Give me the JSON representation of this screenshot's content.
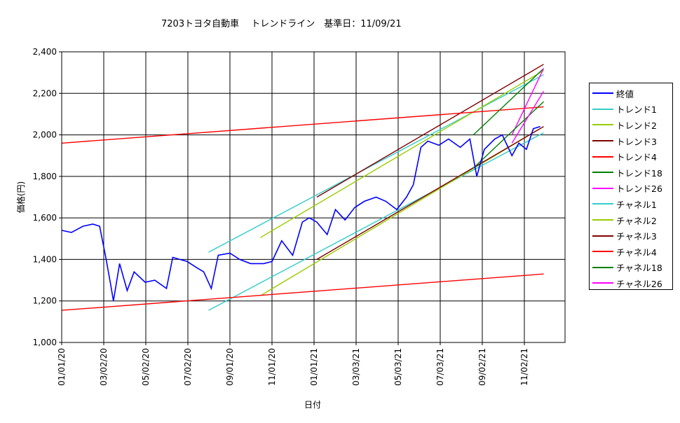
{
  "chart_data": {
    "type": "line",
    "title": "7203トヨタ自動車　 トレンドライン　基準日：11/09/21",
    "xlabel": "日付",
    "ylabel": "価格(円)",
    "ylim": [
      1000,
      2400
    ],
    "yticks": [
      1000,
      1200,
      1400,
      1600,
      1800,
      2000,
      2200,
      2400
    ],
    "ytick_labels": [
      "1,000",
      "1,200",
      "1,400",
      "1,600",
      "1,800",
      "2,000",
      "2,200",
      "2,400"
    ],
    "xlim": [
      "01/01/20",
      "12/31/21"
    ],
    "xticks": [
      "01/01/20",
      "03/02/20",
      "05/02/20",
      "07/02/20",
      "09/01/20",
      "11/01/20",
      "01/01/21",
      "03/03/21",
      "05/03/21",
      "07/03/21",
      "09/02/21",
      "11/02/21"
    ],
    "grid": true,
    "legend_position": "right",
    "series": [
      {
        "name": "終値",
        "color": "#0000ff",
        "x": [
          "01/01/20",
          "01/15/20",
          "02/01/20",
          "02/15/20",
          "02/25/20",
          "03/05/20",
          "03/12/20",
          "03/16/20",
          "03/25/20",
          "04/05/20",
          "04/15/20",
          "05/01/20",
          "05/15/20",
          "06/01/20",
          "06/10/20",
          "07/01/20",
          "07/15/20",
          "07/25/20",
          "08/05/20",
          "08/15/20",
          "09/01/20",
          "09/15/20",
          "10/01/20",
          "10/20/20",
          "11/01/20",
          "11/15/20",
          "12/01/20",
          "12/15/20",
          "12/25/20",
          "01/05/21",
          "01/20/21",
          "02/01/21",
          "02/15/21",
          "03/01/21",
          "03/15/21",
          "04/01/21",
          "04/15/21",
          "05/01/21",
          "05/15/21",
          "05/25/21",
          "06/05/21",
          "06/15/21",
          "07/01/21",
          "07/15/21",
          "08/01/21",
          "08/15/21",
          "08/25/21",
          "09/05/21",
          "09/20/21",
          "10/01/21",
          "10/15/21",
          "10/25/21",
          "11/05/21",
          "11/15/21",
          "11/25/21"
        ],
        "y": [
          1540,
          1530,
          1560,
          1570,
          1560,
          1410,
          1280,
          1200,
          1380,
          1250,
          1340,
          1290,
          1300,
          1260,
          1410,
          1390,
          1360,
          1340,
          1260,
          1420,
          1430,
          1400,
          1380,
          1380,
          1390,
          1490,
          1420,
          1580,
          1600,
          1580,
          1520,
          1640,
          1590,
          1650,
          1680,
          1700,
          1680,
          1640,
          1700,
          1760,
          1940,
          1970,
          1950,
          1980,
          1940,
          1980,
          1800,
          1930,
          1980,
          2000,
          1900,
          1960,
          1930,
          2030,
          2040
        ]
      },
      {
        "name": "トレンド1",
        "color": "#33cccc",
        "x": [
          "08/01/20",
          "11/30/21"
        ],
        "y": [
          1435,
          2290
        ]
      },
      {
        "name": "トレンド2",
        "color": "#99cc00",
        "x": [
          "10/15/20",
          "11/30/21"
        ],
        "y": [
          1505,
          2310
        ]
      },
      {
        "name": "トレンド3",
        "color": "#800000",
        "x": [
          "01/05/21",
          "11/30/21"
        ],
        "y": [
          1700,
          2340
        ]
      },
      {
        "name": "トレンド4",
        "color": "#ff0000",
        "x": [
          "01/01/20",
          "11/30/21"
        ],
        "y": [
          1960,
          2135
        ]
      },
      {
        "name": "トレンド18",
        "color": "#008000",
        "x": [
          "08/20/21",
          "11/30/21"
        ],
        "y": [
          2000,
          2320
        ]
      },
      {
        "name": "トレンド26",
        "color": "#ff00ff",
        "x": [
          "10/15/21",
          "11/30/21"
        ],
        "y": [
          2000,
          2320
        ]
      },
      {
        "name": "チャネル1",
        "color": "#33cccc",
        "x": [
          "08/01/20",
          "11/30/21"
        ],
        "y": [
          1155,
          2010
        ]
      },
      {
        "name": "チャネル2",
        "color": "#99cc00",
        "x": [
          "10/15/20",
          "11/30/21"
        ],
        "y": [
          1225,
          2040
        ]
      },
      {
        "name": "チャネル3",
        "color": "#800000",
        "x": [
          "01/05/21",
          "11/30/21"
        ],
        "y": [
          1400,
          2040
        ]
      },
      {
        "name": "チャネル4",
        "color": "#ff0000",
        "x": [
          "01/01/20",
          "11/30/21"
        ],
        "y": [
          1155,
          1330
        ]
      },
      {
        "name": "チャネル18",
        "color": "#008000",
        "x": [
          "08/20/21",
          "11/30/21"
        ],
        "y": [
          1840,
          2160
        ]
      },
      {
        "name": "チャネル26",
        "color": "#ff00ff",
        "x": [
          "10/15/21",
          "11/30/21"
        ],
        "y": [
          1960,
          2210
        ]
      }
    ]
  }
}
